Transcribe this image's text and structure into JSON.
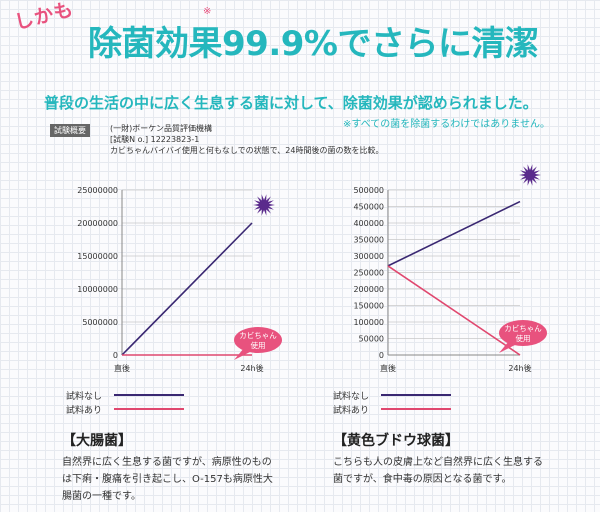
{
  "header": {
    "kicker": "しかも",
    "headline": "除菌効果99.9%でさらに清潔",
    "headline_mark": "※",
    "subhead": "普段の生活の中に広く生息する菌に対して、除菌効果が認められました。",
    "note": "※すべての菌を除菌するわけではありません。"
  },
  "test_info": {
    "label": "試験概要",
    "lines": [
      "(一財)ボーケン品質評価機構",
      "[試験N o.] 12223823-1",
      "カビちゃんバイバイ使用と何もなしでの状態で、24時間後の菌の数を比較。"
    ]
  },
  "colors": {
    "no_sample": "#3a2872",
    "with_sample": "#e0486f",
    "accent": "#25b7bd",
    "badge": "#e8527e",
    "burst": "#5a2a8c"
  },
  "badge_text": [
    "カビちゃん",
    "使用"
  ],
  "chart_data": [
    {
      "type": "line",
      "categories": [
        "直後",
        "24h後"
      ],
      "ylim": [
        0,
        25000000
      ],
      "yticks": [
        0,
        5000000,
        10000000,
        15000000,
        20000000,
        25000000
      ],
      "series": [
        {
          "name": "試料なし",
          "values": [
            0,
            20000000
          ]
        },
        {
          "name": "試料あり",
          "values": [
            0,
            0
          ]
        }
      ],
      "grid": true
    },
    {
      "type": "line",
      "categories": [
        "直後",
        "24h後"
      ],
      "ylim": [
        0,
        500000
      ],
      "yticks": [
        0,
        50000,
        100000,
        150000,
        200000,
        250000,
        300000,
        350000,
        400000,
        450000,
        500000
      ],
      "series": [
        {
          "name": "試料なし",
          "values": [
            270000,
            465000
          ]
        },
        {
          "name": "試料あり",
          "values": [
            270000,
            0
          ]
        }
      ],
      "grid": true
    }
  ],
  "sections": [
    {
      "title": "【大腸菌】",
      "desc": "自然界に広く生息する菌ですが、病原性のものは下痢・腹痛を引き起こし、O-157も病原性大腸菌の一種です。"
    },
    {
      "title": "【黄色ブドウ球菌】",
      "desc": "こちらも人の皮膚上など自然界に広く生息する菌ですが、食中毒の原因となる菌です。"
    }
  ]
}
